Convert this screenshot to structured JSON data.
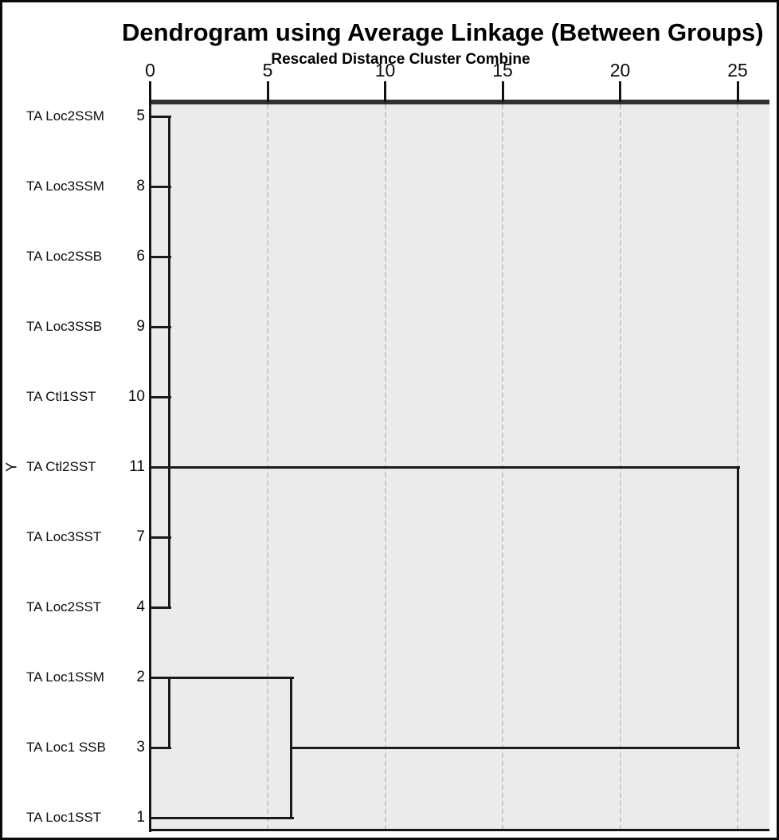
{
  "figure": {
    "title": "Dendrogram using Average Linkage (Between Groups)",
    "subtitle": "Rescaled Distance Cluster Combine",
    "y_axis_label": "Y"
  },
  "chart_data": {
    "type": "dendrogram",
    "orientation": "horizontal",
    "title": "Dendrogram using Average Linkage (Between Groups)",
    "subtitle": "Rescaled Distance Cluster Combine",
    "x_axis": {
      "title": "Rescaled Distance Cluster Combine",
      "position": "top",
      "ticks": [
        0,
        5,
        10,
        15,
        20,
        25
      ],
      "range": [
        0,
        25
      ],
      "gridlines": "dashed vertical at 5,10,15,20,25"
    },
    "y_axis_label": "Y",
    "leaves": [
      {
        "case": "TA Loc2SSM",
        "num": "5"
      },
      {
        "case": "TA Loc3SSM",
        "num": "8"
      },
      {
        "case": "TA Loc2SSB",
        "num": "6"
      },
      {
        "case": "TA Loc3SSB",
        "num": "9"
      },
      {
        "case": "TA Ctl1SST",
        "num": "10"
      },
      {
        "case": "TA Ctl2SST",
        "num": "11"
      },
      {
        "case": "TA Loc3SST",
        "num": "7"
      },
      {
        "case": "TA Loc2SST",
        "num": "4"
      },
      {
        "case": "TA Loc1SSM",
        "num": "2"
      },
      {
        "case": "TA Loc1 SSB",
        "num": "3"
      },
      {
        "case": "TA Loc1SST",
        "num": "1"
      }
    ],
    "joins": [
      {
        "members": [
          "5",
          "8",
          "6",
          "9",
          "10",
          "11",
          "7",
          "4"
        ],
        "distance": 0.8,
        "exit_row": "11"
      },
      {
        "members": [
          "2",
          "3"
        ],
        "distance": 0.8,
        "exit_row": "2"
      },
      {
        "members": [
          "cluster(2,3)",
          "1"
        ],
        "distance": 6,
        "exit_row": "3"
      },
      {
        "members": [
          "cluster(5,8,6,9,10,11,7,4)",
          "cluster(2,3,1)"
        ],
        "distance": 25
      }
    ],
    "segments": [
      {
        "kind": "h",
        "row": "5",
        "from": 0,
        "to": 0.8
      },
      {
        "kind": "h",
        "row": "8",
        "from": 0,
        "to": 0.8
      },
      {
        "kind": "h",
        "row": "6",
        "from": 0,
        "to": 0.8
      },
      {
        "kind": "h",
        "row": "9",
        "from": 0,
        "to": 0.8
      },
      {
        "kind": "h",
        "row": "10",
        "from": 0,
        "to": 0.8
      },
      {
        "kind": "h",
        "row": "11",
        "from": 0,
        "to": 25
      },
      {
        "kind": "h",
        "row": "7",
        "from": 0,
        "to": 0.8
      },
      {
        "kind": "h",
        "row": "4",
        "from": 0,
        "to": 0.8
      },
      {
        "kind": "h",
        "row": "2",
        "from": 0,
        "to": 6
      },
      {
        "kind": "h",
        "row": "3",
        "from": 0,
        "to": 0.8
      },
      {
        "kind": "h",
        "row": "3",
        "from": 6,
        "to": 25
      },
      {
        "kind": "h",
        "row": "1",
        "from": 0,
        "to": 6
      },
      {
        "kind": "v",
        "at": 0.8,
        "fromRow": "5",
        "toRow": "4"
      },
      {
        "kind": "v",
        "at": 0.8,
        "fromRow": "2",
        "toRow": "3"
      },
      {
        "kind": "v",
        "at": 6,
        "fromRow": "2",
        "toRow": "1"
      },
      {
        "kind": "v",
        "at": 25,
        "fromRow": "11",
        "toRow": "3"
      }
    ],
    "colors": {
      "plot_background": "#ebebeb",
      "line": "#1a1a1a",
      "axis_bar": "#303030",
      "gridline": "#c7c7c7",
      "text": "#0c0c0c"
    }
  }
}
